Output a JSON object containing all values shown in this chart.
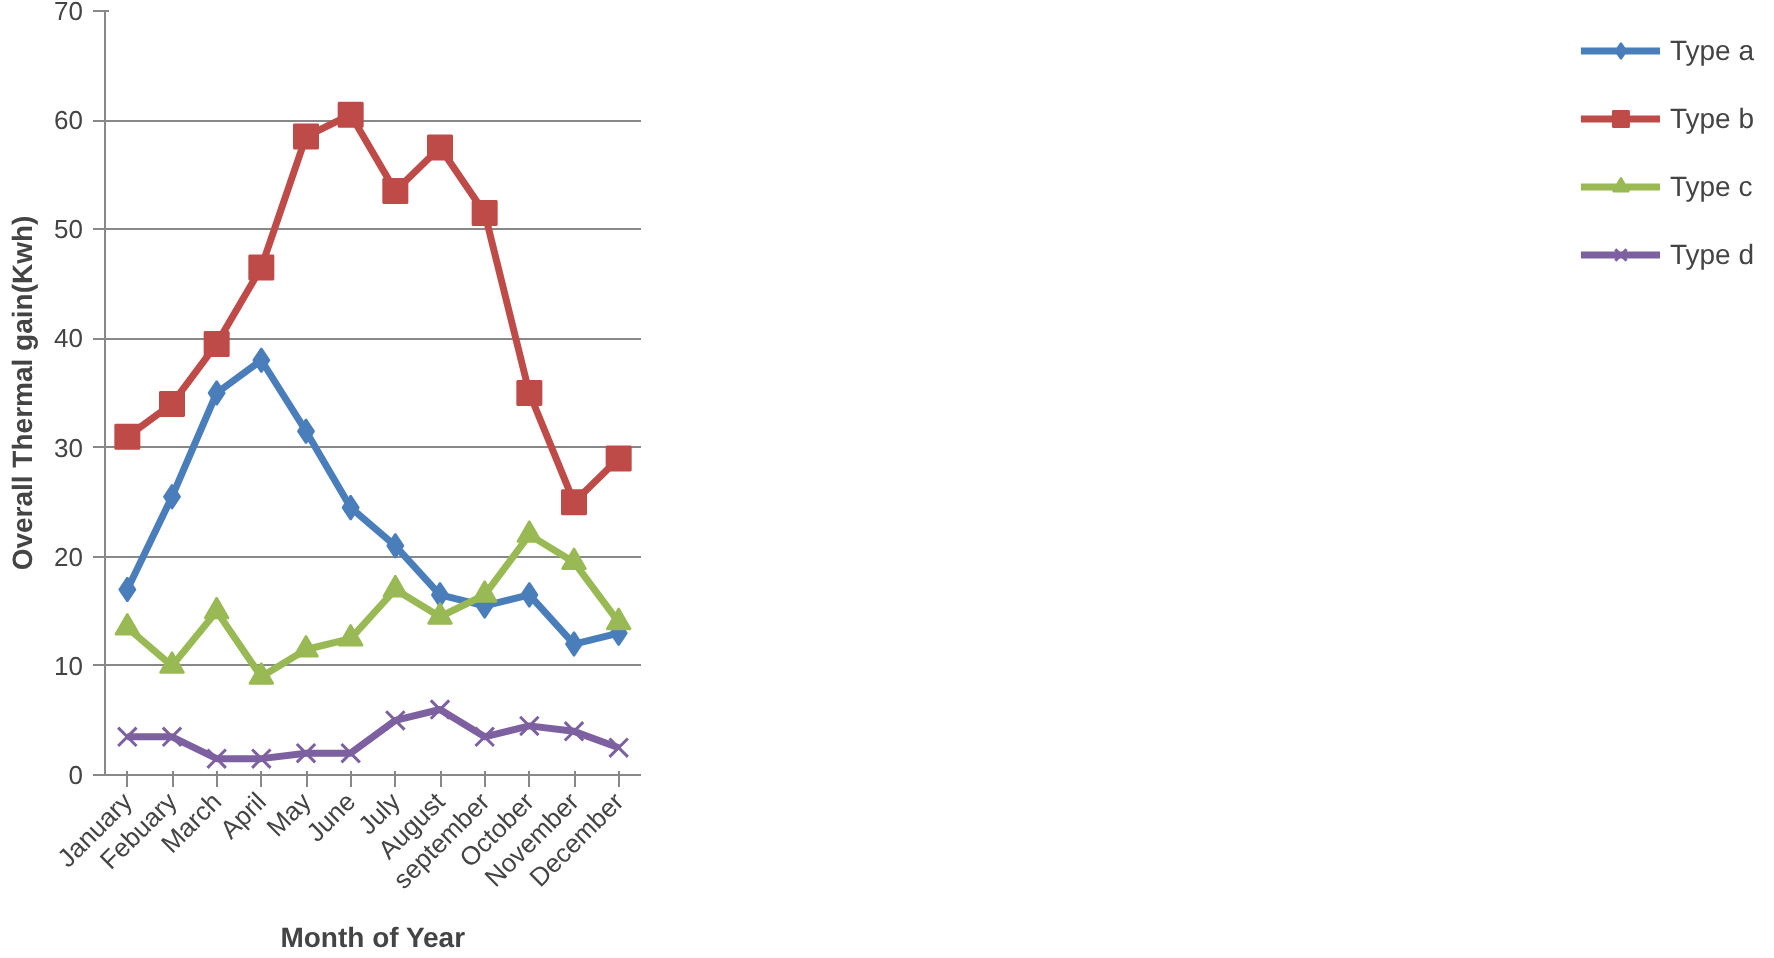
{
  "chart_data": {
    "type": "line",
    "xlabel": "Month of Year",
    "ylabel": "Overall Thermal gain(Kwh)",
    "categories": [
      "January",
      "Febuary",
      "March",
      "April",
      "May",
      "June",
      "July",
      "August",
      "september",
      "October",
      "November",
      "December"
    ],
    "series": [
      {
        "name": "Type a",
        "color": "#4a7ebb",
        "marker": "diamond",
        "values": [
          17,
          25.5,
          35,
          38,
          31.5,
          24.5,
          21,
          16.5,
          15.5,
          16.5,
          12,
          13
        ]
      },
      {
        "name": "Type b",
        "color": "#be4b48",
        "marker": "square",
        "values": [
          31,
          34,
          39.5,
          46.5,
          58.5,
          60.5,
          53.5,
          57.5,
          51.5,
          35,
          25,
          29
        ]
      },
      {
        "name": "Type c",
        "color": "#98b954",
        "marker": "triangle",
        "values": [
          13.5,
          10,
          15,
          9,
          11.5,
          12.5,
          17,
          14.5,
          16.5,
          22,
          19.5,
          14
        ]
      },
      {
        "name": "Type d",
        "color": "#7d60a0",
        "marker": "cross",
        "values": [
          3.5,
          3.5,
          1.5,
          1.5,
          2,
          2,
          5,
          6,
          3.5,
          4.5,
          4,
          2.5
        ]
      }
    ],
    "ylim": [
      0,
      70
    ],
    "yticks": [
      0,
      10,
      20,
      30,
      40,
      50,
      60,
      70
    ],
    "grid": "y",
    "legend": "right",
    "line_style": "solid"
  }
}
